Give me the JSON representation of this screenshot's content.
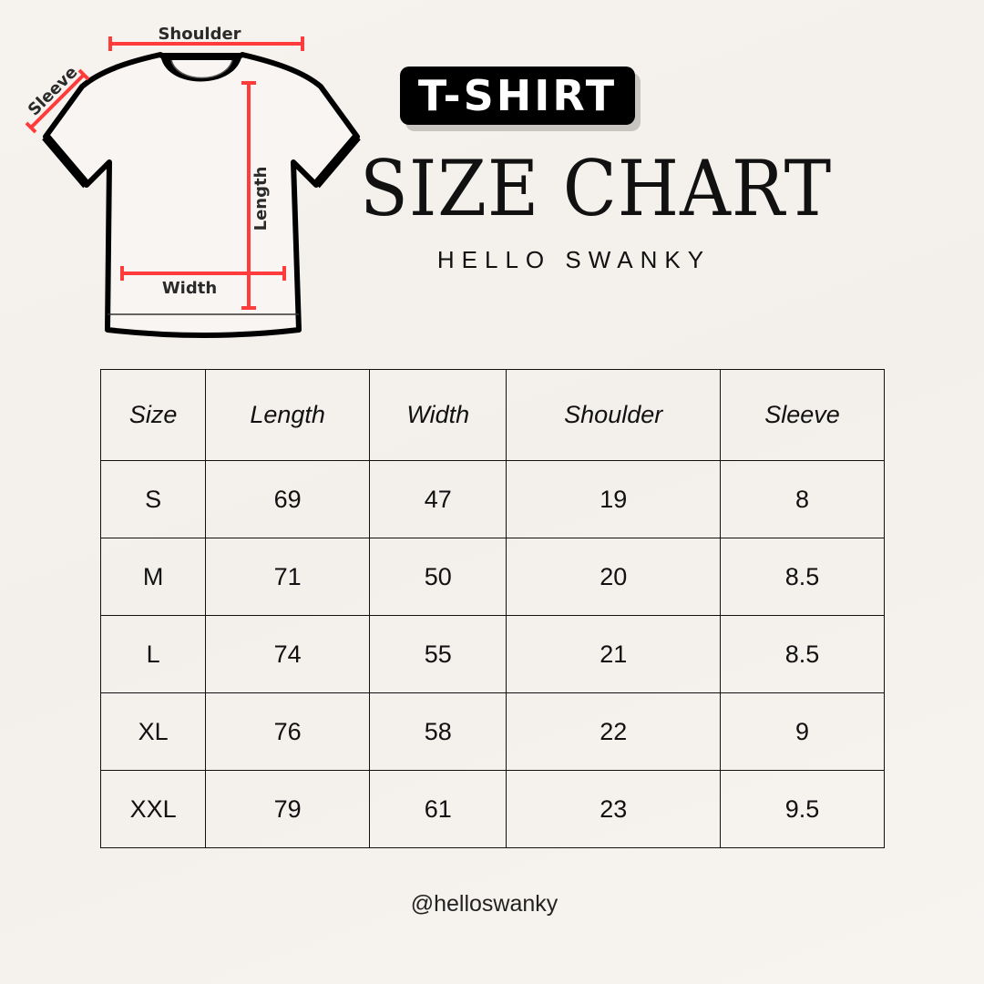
{
  "diagram": {
    "labels": {
      "shoulder": "Shoulder",
      "sleeve": "Sleeve",
      "length": "Length",
      "width": "Width"
    },
    "accent_color": "#ff3b3b"
  },
  "header": {
    "badge": "T-SHIRT",
    "title": "SIZE CHART",
    "brand": "HELLO SWANKY"
  },
  "table": {
    "headers": [
      "Size",
      "Length",
      "Width",
      "Shoulder",
      "Sleeve"
    ],
    "rows": [
      [
        "S",
        "69",
        "47",
        "19",
        "8"
      ],
      [
        "M",
        "71",
        "50",
        "20",
        "8.5"
      ],
      [
        "L",
        "74",
        "55",
        "21",
        "8.5"
      ],
      [
        "XL",
        "76",
        "58",
        "22",
        "9"
      ],
      [
        "XXL",
        "79",
        "61",
        "23",
        "9.5"
      ]
    ]
  },
  "footer": {
    "handle": "@helloswanky"
  }
}
